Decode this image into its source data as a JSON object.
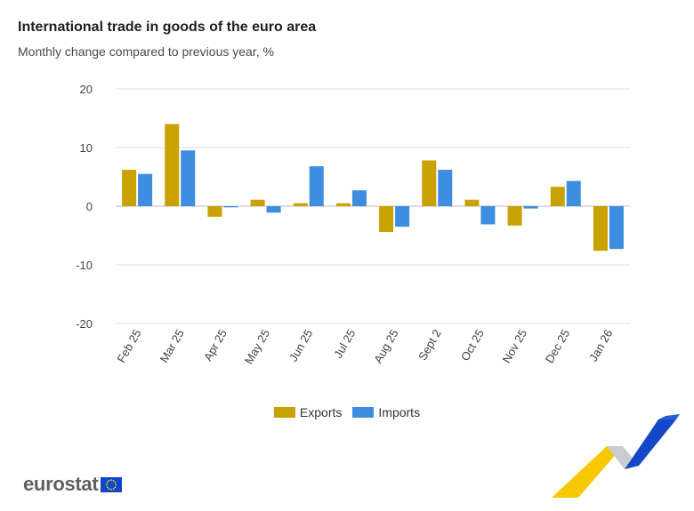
{
  "header": {
    "title": "International trade in goods of the euro area",
    "subtitle": "Monthly change compared to previous year, %"
  },
  "logo": {
    "text": "eurostat",
    "flag_icon": "eu-flag-icon"
  },
  "colors": {
    "exports": "#c9a100",
    "imports": "#3d8de0",
    "grid": "#dddddd",
    "axis_text": "#444444"
  },
  "chart_data": {
    "type": "bar",
    "categories": [
      "Feb 25",
      "Mar 25",
      "Apr 25",
      "May 25",
      "Jun 25",
      "Jul 25",
      "Aug 25",
      "Sept 2",
      "Oct 25",
      "Nov 25",
      "Dec 25",
      "Jan 26"
    ],
    "series": [
      {
        "name": "Exports",
        "values": [
          6.2,
          14.0,
          -1.8,
          1.1,
          0.5,
          0.5,
          -4.4,
          7.8,
          1.1,
          -3.3,
          3.3,
          -7.6
        ]
      },
      {
        "name": "Imports",
        "values": [
          5.5,
          9.5,
          -0.2,
          -1.1,
          6.8,
          2.7,
          -3.5,
          6.2,
          -3.1,
          -0.4,
          4.3,
          -7.3
        ]
      }
    ],
    "yticks": [
      20,
      10,
      0,
      -10,
      -20
    ],
    "ylim": [
      -20,
      20
    ],
    "grid": true,
    "legend_position": "bottom-center"
  }
}
